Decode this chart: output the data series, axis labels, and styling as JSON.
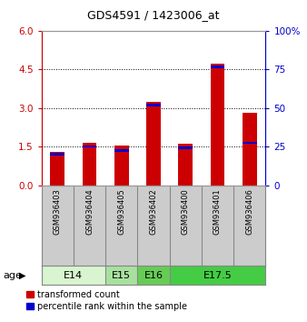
{
  "title": "GDS4591 / 1423006_at",
  "samples": [
    "GSM936403",
    "GSM936404",
    "GSM936405",
    "GSM936402",
    "GSM936400",
    "GSM936401",
    "GSM936406"
  ],
  "red_values": [
    1.3,
    1.65,
    1.55,
    3.25,
    1.6,
    4.7,
    2.8
  ],
  "blue_values": [
    1.2,
    1.5,
    1.35,
    3.1,
    1.45,
    4.6,
    1.65
  ],
  "ylim_left": [
    0,
    6
  ],
  "ylim_right": [
    0,
    100
  ],
  "yticks_left": [
    0,
    1.5,
    3,
    4.5,
    6
  ],
  "yticks_right": [
    0,
    25,
    50,
    75,
    100
  ],
  "left_axis_color": "#cc0000",
  "right_axis_color": "#0000cc",
  "bar_color": "#cc0000",
  "marker_color": "#0000cc",
  "bar_width": 0.45,
  "age_group_defs": [
    {
      "label": "E14",
      "idxs": [
        0,
        1
      ],
      "color": "#d8f5d0"
    },
    {
      "label": "E15",
      "idxs": [
        2
      ],
      "color": "#a8e0a0"
    },
    {
      "label": "E16",
      "idxs": [
        3
      ],
      "color": "#66cc55"
    },
    {
      "label": "E17.5",
      "idxs": [
        4,
        5,
        6
      ],
      "color": "#44cc44"
    }
  ],
  "age_label": "age",
  "legend_red": "transformed count",
  "legend_blue": "percentile rank within the sample",
  "background_color": "#ffffff",
  "grid_color": "#000000",
  "sample_bg": "#cccccc",
  "title_fontsize": 9,
  "tick_fontsize": 7.5,
  "sample_fontsize": 6,
  "age_fontsize": 8,
  "legend_fontsize": 7
}
